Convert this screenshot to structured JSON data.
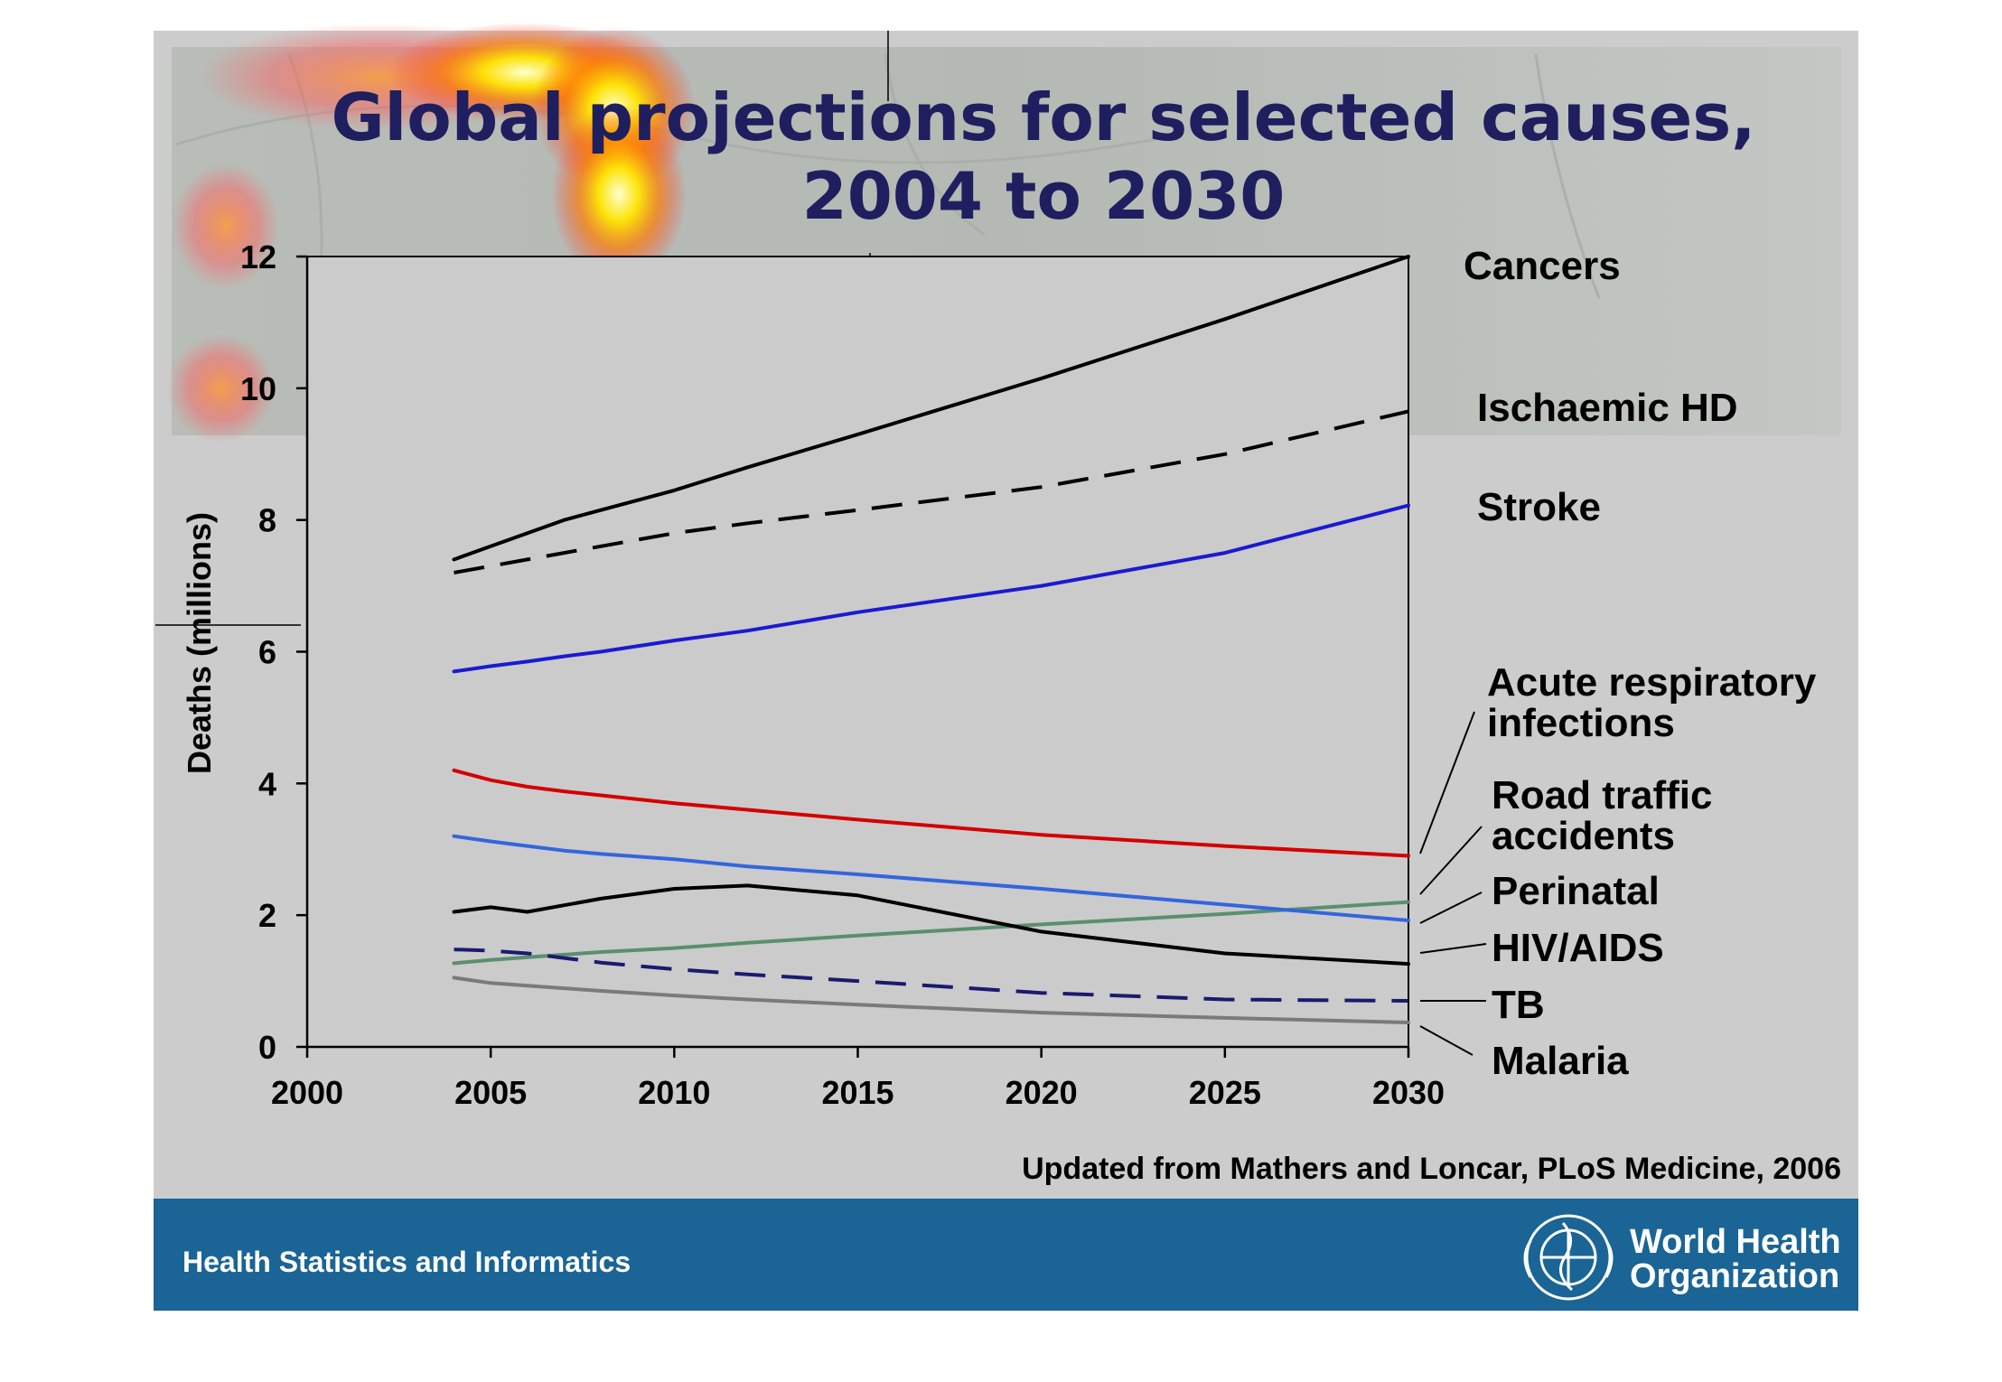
{
  "chart_data": {
    "type": "line",
    "title": "Global projections for selected causes,",
    "subtitle": "2004 to 2030",
    "xlabel": "",
    "ylabel": "Deaths (millions)",
    "xlim": [
      2000,
      2030
    ],
    "ylim": [
      0,
      12
    ],
    "xticks": [
      "2000",
      "2005",
      "2010",
      "2015",
      "2020",
      "2025",
      "2030"
    ],
    "yticks": [
      "0",
      "2",
      "4",
      "6",
      "8",
      "10",
      "12"
    ],
    "grid": false,
    "legend": "labels-right",
    "x": [
      2004,
      2005,
      2006,
      2007,
      2008,
      2010,
      2012,
      2015,
      2020,
      2025,
      2030
    ],
    "series": [
      {
        "name": "Cancers",
        "color": "#000000",
        "dash": "solid",
        "values": [
          7.4,
          7.6,
          7.8,
          8.0,
          8.15,
          8.45,
          8.8,
          9.3,
          10.15,
          11.05,
          12.0
        ]
      },
      {
        "name": "Ischaemic HD",
        "color": "#000000",
        "dash": "dashed",
        "values": [
          7.2,
          7.3,
          7.4,
          7.5,
          7.6,
          7.8,
          7.95,
          8.15,
          8.5,
          9.0,
          9.65
        ]
      },
      {
        "name": "Stroke",
        "color": "#1a1ad4",
        "dash": "solid",
        "values": [
          5.7,
          5.78,
          5.85,
          5.93,
          6.0,
          6.17,
          6.32,
          6.6,
          7.0,
          7.5,
          8.22
        ]
      },
      {
        "name": "Acute respiratory infections",
        "color": "#d40000",
        "dash": "solid",
        "values": [
          4.2,
          4.05,
          3.95,
          3.88,
          3.82,
          3.7,
          3.6,
          3.45,
          3.22,
          3.05,
          2.9
        ]
      },
      {
        "name": "Road traffic accidents",
        "color": "#5a8f6f",
        "dash": "solid",
        "values": [
          1.27,
          1.32,
          1.36,
          1.4,
          1.44,
          1.5,
          1.58,
          1.69,
          1.86,
          2.02,
          2.2
        ]
      },
      {
        "name": "Perinatal",
        "color": "#3366dd",
        "dash": "solid",
        "values": [
          3.2,
          3.12,
          3.05,
          2.98,
          2.93,
          2.85,
          2.74,
          2.62,
          2.4,
          2.16,
          1.92
        ]
      },
      {
        "name": "HIV/AIDS",
        "color": "#000000",
        "dash": "solid",
        "values": [
          2.05,
          2.12,
          2.05,
          2.15,
          2.25,
          2.4,
          2.45,
          2.3,
          1.75,
          1.42,
          1.26
        ]
      },
      {
        "name": "TB",
        "color": "#1a1a70",
        "dash": "dashed",
        "values": [
          1.48,
          1.46,
          1.42,
          1.35,
          1.28,
          1.18,
          1.1,
          1.0,
          0.82,
          0.72,
          0.7
        ]
      },
      {
        "name": "Malaria",
        "color": "#7a7a7a",
        "dash": "solid",
        "values": [
          1.05,
          0.97,
          0.93,
          0.89,
          0.85,
          0.78,
          0.72,
          0.64,
          0.52,
          0.44,
          0.37
        ]
      }
    ],
    "labels": {
      "cancers": "Cancers",
      "ihd": "Ischaemic HD",
      "stroke": "Stroke",
      "ari_1": "Acute respiratory",
      "ari_2": "infections",
      "rta_1": "Road traffic",
      "rta_2": "accidents",
      "perinatal": "Perinatal",
      "hiv": "HIV/AIDS",
      "tb": "TB",
      "malaria": "Malaria"
    },
    "source": "Updated from Mathers and Loncar, PLoS Medicine, 2006"
  },
  "footer": {
    "left_text": "Health Statistics and Informatics",
    "org_line1": "World Health",
    "org_line2": "Organization",
    "logo_icon": "who-emblem-icon",
    "bar_color": "#1a6496"
  },
  "colors": {
    "slide_background": "#cccccc",
    "title_color": "#1f1f5f"
  }
}
